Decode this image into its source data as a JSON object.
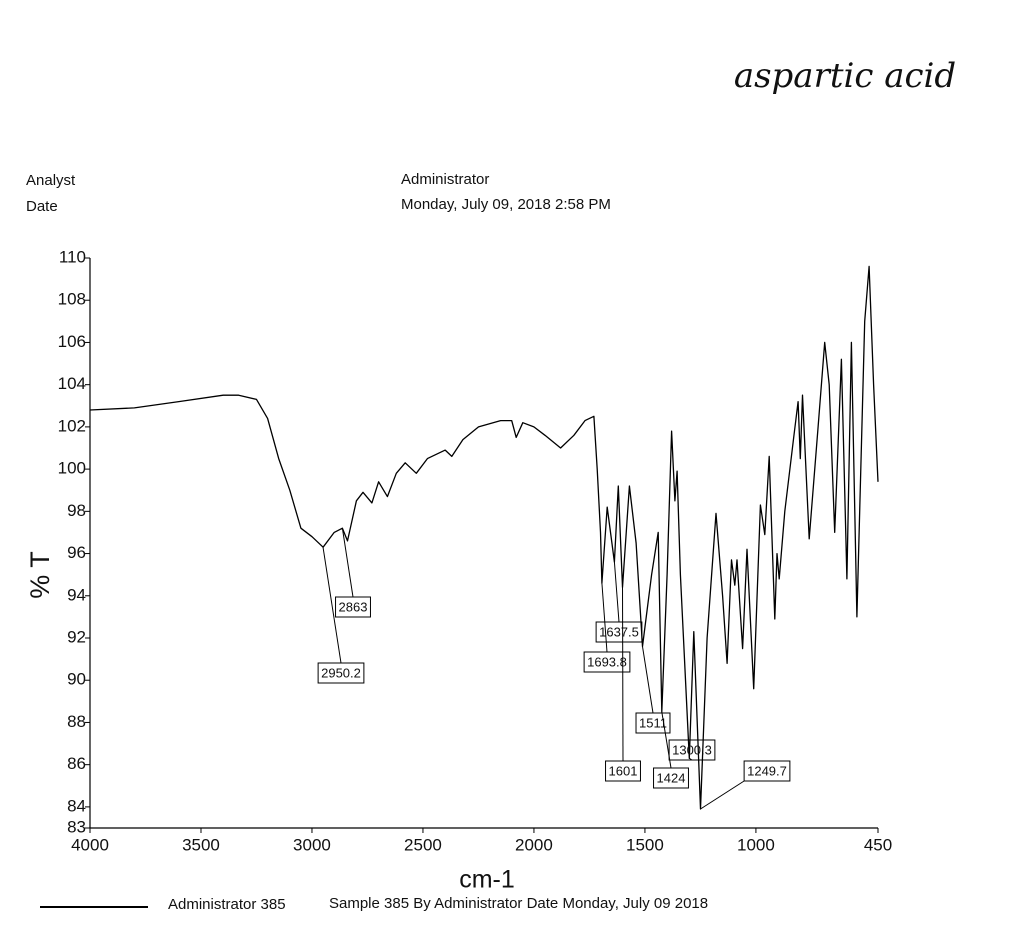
{
  "header": {
    "handwritten_title": "aspartic acid",
    "analyst_label": "Analyst",
    "analyst": "Administrator",
    "date_label": "Date",
    "date": "Monday, July 09, 2018 2:58 PM"
  },
  "chart_data": {
    "type": "line",
    "ylabel": "% T",
    "xlabel": "cm-1",
    "xlim": [
      4000,
      450
    ],
    "ylim": [
      83,
      110
    ],
    "xticks": [
      4000,
      3500,
      3000,
      2500,
      2000,
      1500,
      1000,
      450
    ],
    "yticks": [
      83,
      84,
      86,
      88,
      90,
      92,
      94,
      96,
      98,
      100,
      102,
      104,
      106,
      108,
      110
    ],
    "x": [
      4000,
      3800,
      3600,
      3400,
      3330,
      3250,
      3200,
      3150,
      3100,
      3050,
      3000,
      2950,
      2900,
      2863,
      2840,
      2800,
      2770,
      2730,
      2700,
      2660,
      2620,
      2580,
      2530,
      2480,
      2400,
      2370,
      2320,
      2250,
      2150,
      2100,
      2080,
      2050,
      2000,
      1950,
      1880,
      1820,
      1770,
      1730,
      1715,
      1700,
      1693.8,
      1670,
      1637.5,
      1620,
      1601,
      1570,
      1540,
      1511,
      1470,
      1440,
      1424,
      1400,
      1380,
      1365,
      1355,
      1340,
      1300.3,
      1280,
      1249.7,
      1220,
      1180,
      1150,
      1130,
      1110,
      1095,
      1085,
      1060,
      1040,
      1010,
      980,
      960,
      940,
      915,
      905,
      895,
      870,
      830,
      810,
      800,
      790,
      760,
      720,
      690,
      670,
      645,
      615,
      600,
      590,
      570,
      545,
      510,
      490,
      470,
      450
    ],
    "series": [
      {
        "name": "Administrator 385",
        "color": "#000000",
        "values": [
          102.8,
          102.9,
          103.2,
          103.5,
          103.5,
          103.3,
          102.4,
          100.5,
          99.0,
          97.2,
          96.8,
          96.3,
          97.0,
          97.2,
          96.6,
          98.5,
          98.9,
          98.4,
          99.4,
          98.7,
          99.8,
          100.3,
          99.8,
          100.5,
          100.9,
          100.6,
          101.4,
          102.0,
          102.3,
          102.3,
          101.5,
          102.2,
          102.0,
          101.6,
          101.0,
          101.6,
          102.3,
          102.5,
          100.0,
          97.0,
          94.6,
          98.2,
          95.6,
          99.2,
          94.4,
          99.2,
          96.5,
          91.6,
          95.0,
          97.0,
          88.5,
          95.0,
          101.8,
          98.5,
          99.9,
          95.0,
          86.3,
          92.3,
          83.9,
          92.0,
          97.9,
          94.0,
          90.8,
          95.7,
          94.5,
          95.7,
          91.5,
          96.2,
          89.6,
          98.3,
          96.9,
          100.6,
          92.9,
          96.0,
          94.8,
          98.0,
          101.5,
          103.2,
          100.5,
          103.5,
          96.7,
          102.0,
          106.0,
          104.0,
          97.0,
          105.2,
          99.0,
          94.8,
          106.0,
          93.0,
          107.0,
          109.6,
          104.0,
          99.4
        ]
      }
    ],
    "peaks": [
      {
        "x": 2950.2,
        "y": 96.3
      },
      {
        "x": 2863,
        "y": 97.2
      },
      {
        "x": 1637.5,
        "y": 95.6
      },
      {
        "x": 1693.8,
        "y": 94.6
      },
      {
        "x": 1511,
        "y": 91.6
      },
      {
        "x": 1601,
        "y": 94.4
      },
      {
        "x": 1424,
        "y": 88.5
      },
      {
        "x": 1300.3,
        "y": 86.3
      },
      {
        "x": 1249.7,
        "y": 83.9
      }
    ],
    "caption": "Sample 385 By Administrator Date Monday, July 09 2018"
  }
}
